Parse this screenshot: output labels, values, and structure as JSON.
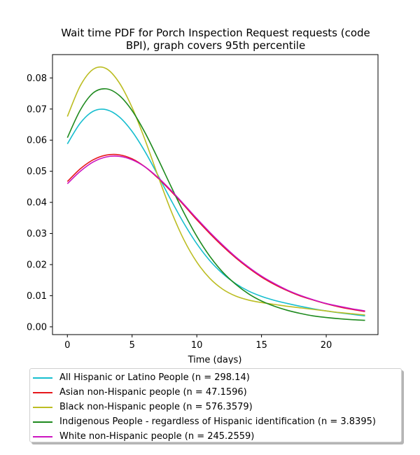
{
  "chart_data": {
    "type": "line",
    "title_lines": [
      "Wait time PDF for Porch Inspection Request  requests (code",
      "BPI), graph covers 95th percentile"
    ],
    "xlabel": "Time (days)",
    "ylabel": "",
    "xlim": [
      -1.15,
      24.0
    ],
    "ylim": [
      -0.0025,
      0.0875
    ],
    "xticks": [
      0,
      5,
      10,
      15,
      20
    ],
    "yticks": [
      0.0,
      0.01,
      0.02,
      0.03,
      0.04,
      0.05,
      0.06,
      0.07,
      0.08
    ],
    "ytick_labels": [
      "0.00",
      "0.01",
      "0.02",
      "0.03",
      "0.04",
      "0.05",
      "0.06",
      "0.07",
      "0.08"
    ],
    "grid": false,
    "legend_position": "below",
    "x": [
      0,
      1,
      2,
      3,
      4,
      5,
      6,
      7,
      8,
      9,
      10,
      11,
      12,
      13,
      14,
      15,
      16,
      17,
      18,
      19,
      20,
      21,
      22,
      23
    ],
    "series": [
      {
        "name": "All Hispanic or Latino People (n = 298.14)",
        "color": "#17becf",
        "values": [
          0.0588,
          0.0655,
          0.0693,
          0.0698,
          0.0675,
          0.0628,
          0.0563,
          0.0487,
          0.0408,
          0.0333,
          0.0267,
          0.0213,
          0.0171,
          0.0139,
          0.0115,
          0.0098,
          0.0085,
          0.0075,
          0.0066,
          0.0058,
          0.0051,
          0.0045,
          0.004,
          0.0035
        ]
      },
      {
        "name": "Asian non-Hispanic people (n = 47.1596)",
        "color": "#e6171b",
        "values": [
          0.0467,
          0.0508,
          0.0537,
          0.0552,
          0.0553,
          0.054,
          0.0514,
          0.0478,
          0.0436,
          0.0391,
          0.0344,
          0.03,
          0.0259,
          0.0222,
          0.0189,
          0.016,
          0.0136,
          0.0116,
          0.0099,
          0.0086,
          0.0074,
          0.0064,
          0.0056,
          0.0049
        ]
      },
      {
        "name": "Black non-Hispanic people (n = 576.3579)",
        "color": "#bcbd22",
        "values": [
          0.0676,
          0.0775,
          0.0828,
          0.083,
          0.0785,
          0.0705,
          0.0601,
          0.0485,
          0.0374,
          0.028,
          0.0208,
          0.0156,
          0.0121,
          0.0099,
          0.0086,
          0.0078,
          0.0072,
          0.0066,
          0.0061,
          0.0056,
          0.0051,
          0.0046,
          0.0042,
          0.0038
        ]
      },
      {
        "name": "Indigenous People - regardless of Hispanic identification (n = 3.8395)",
        "color": "#1e8a1e",
        "values": [
          0.0608,
          0.0697,
          0.0752,
          0.0765,
          0.0744,
          0.0695,
          0.0624,
          0.054,
          0.0452,
          0.0367,
          0.0291,
          0.0227,
          0.0176,
          0.0137,
          0.0106,
          0.0083,
          0.0066,
          0.0053,
          0.0043,
          0.0035,
          0.003,
          0.0026,
          0.0023,
          0.0021
        ]
      },
      {
        "name": "White non-Hispanic people (n = 245.2559)",
        "color": "#cc14c0",
        "values": [
          0.046,
          0.05,
          0.053,
          0.0546,
          0.0548,
          0.0537,
          0.0514,
          0.048,
          0.0439,
          0.0394,
          0.0348,
          0.0304,
          0.0263,
          0.0225,
          0.0192,
          0.0163,
          0.0139,
          0.0118,
          0.0101,
          0.0087,
          0.0075,
          0.0066,
          0.0058,
          0.0051
        ]
      }
    ]
  }
}
